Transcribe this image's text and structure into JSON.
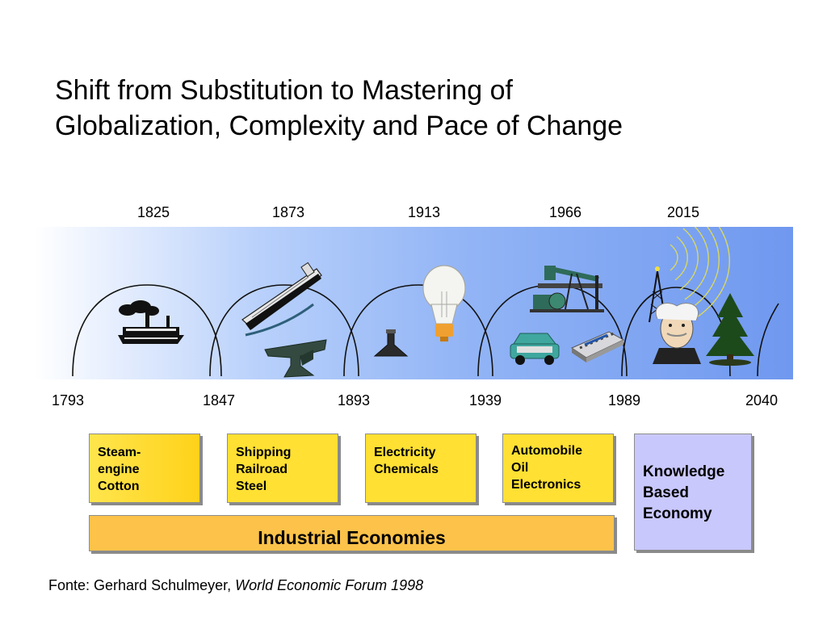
{
  "title": {
    "line1": "Shift from Substitution to Mastering of",
    "line2": "Globalization, Complexity and Pace of Change"
  },
  "timeline": {
    "peak_years": [
      "1825",
      "1873",
      "1913",
      "1966",
      "2015"
    ],
    "boundary_years": [
      "1793",
      "1847",
      "1893",
      "1939",
      "1989",
      "2040"
    ]
  },
  "icons": [
    "steamboat-icon",
    "tanker-ship-icon",
    "anvil-icon",
    "flask-icon",
    "light-bulb-icon",
    "oil-pump-icon",
    "car-icon",
    "circuit-chip-icon",
    "radio-tower-icon",
    "einstein-portrait-icon",
    "pine-tree-icon"
  ],
  "eras": [
    {
      "lines": [
        "Steam-",
        "engine",
        "Cotton"
      ]
    },
    {
      "lines": [
        "Shipping",
        "Railroad",
        "Steel"
      ]
    },
    {
      "lines": [
        "Electricity",
        "Chemicals"
      ]
    },
    {
      "lines": [
        "Automobile",
        "Oil",
        "Electronics"
      ]
    }
  ],
  "knowledge": {
    "lines": [
      "Knowledge",
      "Based",
      "Economy"
    ]
  },
  "industrial_label": "Industrial Economies",
  "source": {
    "prefix": "Fonte: Gerhard Schulmeyer, ",
    "italic": "World Economic Forum 1998"
  },
  "colors": {
    "era_box": "#ffe033",
    "knowledge_box": "#c9c8fd",
    "industrial_bar": "#fcc24a",
    "band_end": "#6f98ef"
  }
}
